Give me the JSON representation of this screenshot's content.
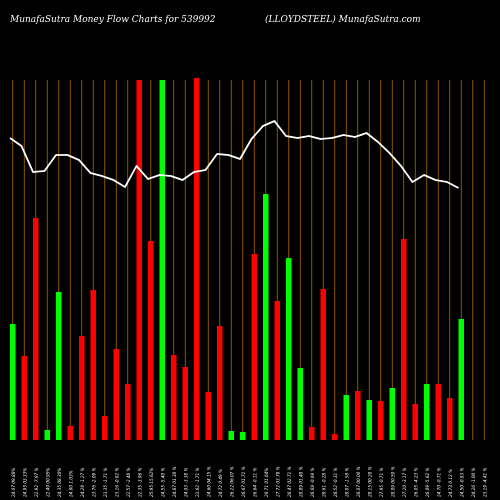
{
  "header": {
    "left": "MunafaSutra  Money Flow  Charts for 539992",
    "right": "(LLOYDSTEEL) MunafaSutra.com"
  },
  "colors": {
    "background": "#000000",
    "grid": "#b36a00",
    "up": "#00ff00",
    "down": "#ff0000",
    "line": "#ffffff",
    "text": "#ffffff"
  },
  "chart_data": {
    "type": "bar",
    "title": "MunafaSutra  Money Flow  Charts for 539992",
    "subtitle": "(LLOYDSTEEL) MunafaSutra.com",
    "categories": [
      "24.07 09.88%",
      "24.95 03.33%",
      "22.92 -7.97 %",
      "22.49 00.95%",
      "24.35 08.30%",
      "24.60 1.03%",
      "24.29 -1.27 %",
      "23.76 -2.09 %",
      "23.35 -1.71 %",
      "23.16 -0.82 %",
      "22.57 -2.48 %",
      "22.35 -3.96 %",
      "25.95 15.62%",
      "24.55 -5.40 %",
      "24.87 01.30 %",
      "24.03 -3.38 %",
      "23.62 -1.71 %",
      "24.60 04.15 %",
      "24.72 0.49 %",
      "26.22 06.07 %",
      "26.67 01.72 %",
      "26.64 -0.11 %",
      "26.71 01.64%",
      "27.72 03.78 %",
      "28.47 02.71 %",
      "28.89 01.48 %",
      "28.69 -0.69 %",
      "28.61 -0.28 %",
      "28.52 -0.31 %",
      "28.07 -1.58 %",
      "28.07 00.00 %",
      "28.15 00.28 %",
      "27.95 -0.71 %",
      "28.09 00.50 %",
      "27.20 -3.17 %",
      "26.05 -4.23 %",
      "26.09 -5.62 %",
      "24.70 -0.71 %",
      "24.73 0.12 %",
      "24.50 -0.93 %",
      "24.26 -1.00 %",
      "23.19 -4.41 %"
    ],
    "bar_colors": [
      "up",
      "down",
      "down",
      "up",
      "up",
      "down",
      "down",
      "down",
      "down",
      "down",
      "down",
      "down",
      "down",
      "up",
      "down",
      "down",
      "down",
      "down",
      "down",
      "up",
      "up",
      "down",
      "up",
      "down",
      "up",
      "up",
      "down",
      "down",
      "down",
      "up",
      "down",
      "up",
      "down",
      "up",
      "down",
      "down",
      "up",
      "down",
      "down",
      "up",
      "down",
      "down"
    ],
    "values": [
      116,
      84,
      222,
      10,
      148,
      14,
      104,
      150,
      24,
      91,
      56,
      360,
      199,
      360,
      85,
      73,
      362,
      48,
      114,
      9,
      8,
      186,
      246,
      139,
      182,
      72,
      13,
      151,
      6,
      45,
      49,
      40,
      39,
      52,
      201,
      36,
      56,
      56,
      42,
      121,
      0,
      0
    ],
    "line": [
      302,
      294,
      268,
      269,
      285,
      285,
      280,
      267,
      264,
      260,
      253,
      274,
      261,
      265,
      264,
      260,
      268,
      270,
      286,
      285,
      281,
      301,
      314,
      319,
      304,
      302,
      304,
      301,
      302,
      305,
      303,
      307,
      298,
      287,
      274,
      258,
      265,
      260,
      258,
      252,
      0,
      0
    ],
    "ylim": [
      0,
      360
    ],
    "grid": true
  }
}
